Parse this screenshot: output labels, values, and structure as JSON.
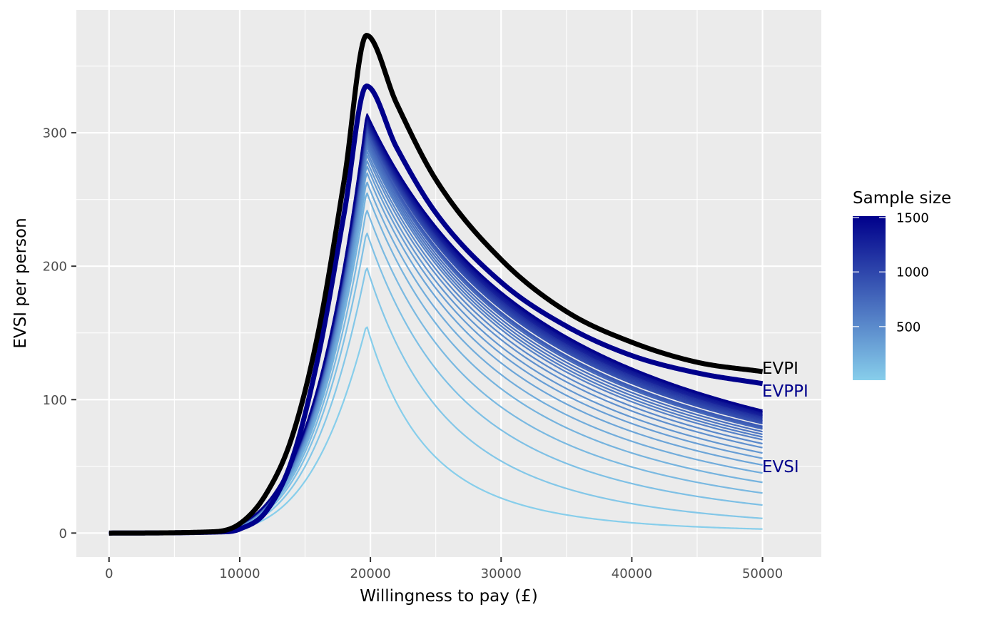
{
  "chart_data": {
    "type": "line",
    "xlabel": "Willingness to pay (£)",
    "ylabel": "EVSI per person",
    "xlim": [
      -2500,
      54500
    ],
    "ylim": [
      -18,
      392
    ],
    "x_ticks": [
      0,
      10000,
      20000,
      30000,
      40000,
      50000
    ],
    "x_tick_labels": [
      "0",
      "10000",
      "20000",
      "30000",
      "40000",
      "50000"
    ],
    "y_ticks": [
      0,
      100,
      200,
      300
    ],
    "y_tick_labels": [
      "0",
      "100",
      "200",
      "300"
    ],
    "x_minor_ticks": [
      5000,
      15000,
      25000,
      35000,
      45000
    ],
    "y_minor_ticks": [
      50,
      150,
      250,
      350
    ],
    "grid": true,
    "panel_background": "#ebebeb",
    "peak_x": 19700,
    "x_end": 50000,
    "rise_shape": {
      "min_x": 5000,
      "width": 14700,
      "power": 3.6
    },
    "reference_curves": [
      {
        "label": "EVPI",
        "color": "#000000",
        "peak": 373,
        "end": 121,
        "points": [
          [
            0,
            0
          ],
          [
            8000,
            1
          ],
          [
            10000,
            7
          ],
          [
            12000,
            29
          ],
          [
            14000,
            72
          ],
          [
            16000,
            150
          ],
          [
            18000,
            265
          ],
          [
            19700,
            373
          ],
          [
            22000,
            322
          ],
          [
            25000,
            265
          ],
          [
            30000,
            205
          ],
          [
            35000,
            166
          ],
          [
            40000,
            143
          ],
          [
            45000,
            128
          ],
          [
            50000,
            121
          ]
        ]
      },
      {
        "label": "EVPPI",
        "color": "#00008b",
        "peak": 335,
        "end": 112,
        "points": [
          [
            0,
            0
          ],
          [
            9000,
            1
          ],
          [
            10000,
            3
          ],
          [
            12000,
            16
          ],
          [
            14000,
            55
          ],
          [
            16000,
            132
          ],
          [
            18000,
            240
          ],
          [
            19700,
            335
          ],
          [
            22000,
            289
          ],
          [
            25000,
            240
          ],
          [
            30000,
            188
          ],
          [
            35000,
            155
          ],
          [
            40000,
            133
          ],
          [
            45000,
            120
          ],
          [
            50000,
            112
          ]
        ]
      }
    ],
    "evsi_label": "EVSI",
    "evsi_label_color": "#00008b",
    "evsi_series": [
      {
        "sample_size": 10,
        "peak": 156,
        "end": 3
      },
      {
        "sample_size": 60,
        "peak": 200,
        "end": 11
      },
      {
        "sample_size": 110,
        "peak": 226,
        "end": 21
      },
      {
        "sample_size": 160,
        "peak": 243,
        "end": 30
      },
      {
        "sample_size": 210,
        "peak": 256,
        "end": 38
      },
      {
        "sample_size": 260,
        "peak": 264,
        "end": 45
      },
      {
        "sample_size": 310,
        "peak": 271,
        "end": 51
      },
      {
        "sample_size": 360,
        "peak": 276,
        "end": 56
      },
      {
        "sample_size": 410,
        "peak": 280,
        "end": 60
      },
      {
        "sample_size": 460,
        "peak": 284,
        "end": 64
      },
      {
        "sample_size": 510,
        "peak": 287,
        "end": 67
      },
      {
        "sample_size": 560,
        "peak": 290,
        "end": 70
      },
      {
        "sample_size": 610,
        "peak": 292,
        "end": 72
      },
      {
        "sample_size": 660,
        "peak": 294,
        "end": 74
      },
      {
        "sample_size": 710,
        "peak": 296,
        "end": 76
      },
      {
        "sample_size": 760,
        "peak": 298,
        "end": 78
      },
      {
        "sample_size": 810,
        "peak": 300,
        "end": 79
      },
      {
        "sample_size": 860,
        "peak": 301,
        "end": 80
      },
      {
        "sample_size": 910,
        "peak": 303,
        "end": 82
      },
      {
        "sample_size": 960,
        "peak": 304,
        "end": 83
      },
      {
        "sample_size": 1010,
        "peak": 305,
        "end": 84
      },
      {
        "sample_size": 1060,
        "peak": 306,
        "end": 85
      },
      {
        "sample_size": 1110,
        "peak": 307,
        "end": 86
      },
      {
        "sample_size": 1160,
        "peak": 308,
        "end": 87
      },
      {
        "sample_size": 1210,
        "peak": 309,
        "end": 88
      },
      {
        "sample_size": 1260,
        "peak": 310,
        "end": 88
      },
      {
        "sample_size": 1310,
        "peak": 311,
        "end": 89
      },
      {
        "sample_size": 1360,
        "peak": 312,
        "end": 90
      },
      {
        "sample_size": 1410,
        "peak": 313,
        "end": 91
      },
      {
        "sample_size": 1460,
        "peak": 314,
        "end": 91
      },
      {
        "sample_size": 1510,
        "peak": 315,
        "end": 92
      }
    ],
    "legend": {
      "title": "Sample size",
      "placement": "right",
      "ticks": [
        500,
        1000,
        1500
      ],
      "tick_labels": [
        "500",
        "1000",
        "1500"
      ],
      "range": [
        10,
        1510
      ],
      "color_low": "#87ceeb",
      "color_high": "#00008b"
    }
  }
}
